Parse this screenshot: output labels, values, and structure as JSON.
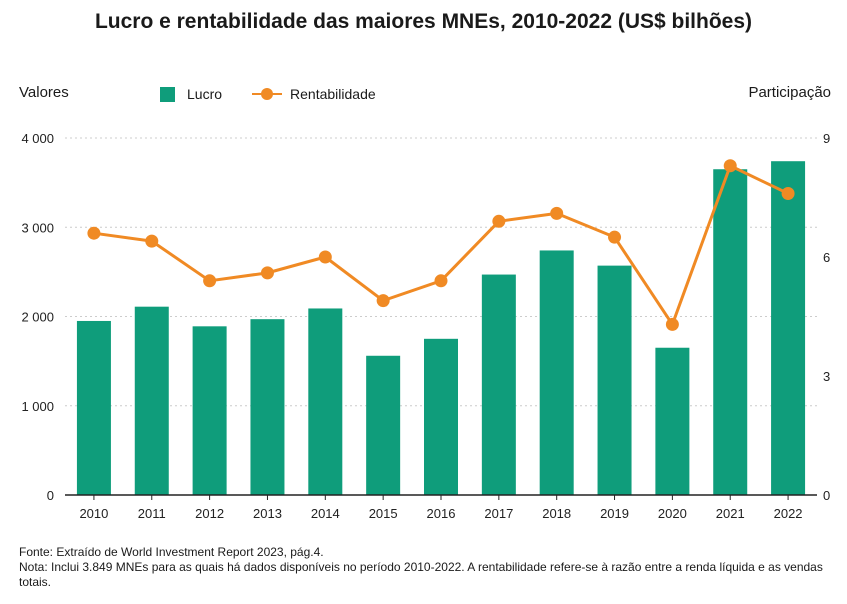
{
  "title": "Lucro e rentabilidade das maiores MNEs, 2010-2022 (US$ bilhões)",
  "colors": {
    "bar": "#0f9d7b",
    "line": "#f08a24",
    "grid": "#cccccc",
    "axis": "#222222"
  },
  "chart_data": {
    "type": "bar",
    "title": "Lucro e rentabilidade das maiores MNEs, 2010-2022 (US$ bilhões)",
    "left_axis_title": "Valores",
    "right_axis_title": "Participação",
    "categories": [
      "2010",
      "2011",
      "2012",
      "2013",
      "2014",
      "2015",
      "2016",
      "2017",
      "2018",
      "2019",
      "2020",
      "2021",
      "2022"
    ],
    "series": [
      {
        "name": "Lucro",
        "type": "bar",
        "axis": "left",
        "values": [
          1950,
          2110,
          1890,
          1970,
          2090,
          1560,
          1750,
          2470,
          2740,
          2570,
          1650,
          3650,
          3740
        ]
      },
      {
        "name": "Rentabilidade",
        "type": "line",
        "axis": "right",
        "values": [
          6.6,
          6.4,
          5.4,
          5.6,
          6.0,
          4.9,
          5.4,
          6.9,
          7.1,
          6.5,
          4.3,
          8.3,
          7.6
        ]
      }
    ],
    "y_left": {
      "min": 0,
      "max": 4000,
      "ticks": [
        0,
        1000,
        2000,
        3000,
        4000
      ],
      "tick_labels": [
        "0",
        "1 000",
        "2 000",
        "3 000",
        "4 000"
      ]
    },
    "y_right": {
      "min": 0,
      "max": 9,
      "ticks": [
        0,
        3,
        6,
        9
      ],
      "tick_labels": [
        "0",
        "3",
        "6",
        "9"
      ]
    },
    "grid": true,
    "legend": "top"
  },
  "notes": {
    "source": "Fonte: Extraído de World Investment Report 2023, pág.4.",
    "note": "Nota: Inclui 3.849 MNEs para as quais há dados disponíveis  no período 2010-2022.  A rentabilidade refere-se à razão entre a renda líquida e as vendas  totais."
  }
}
